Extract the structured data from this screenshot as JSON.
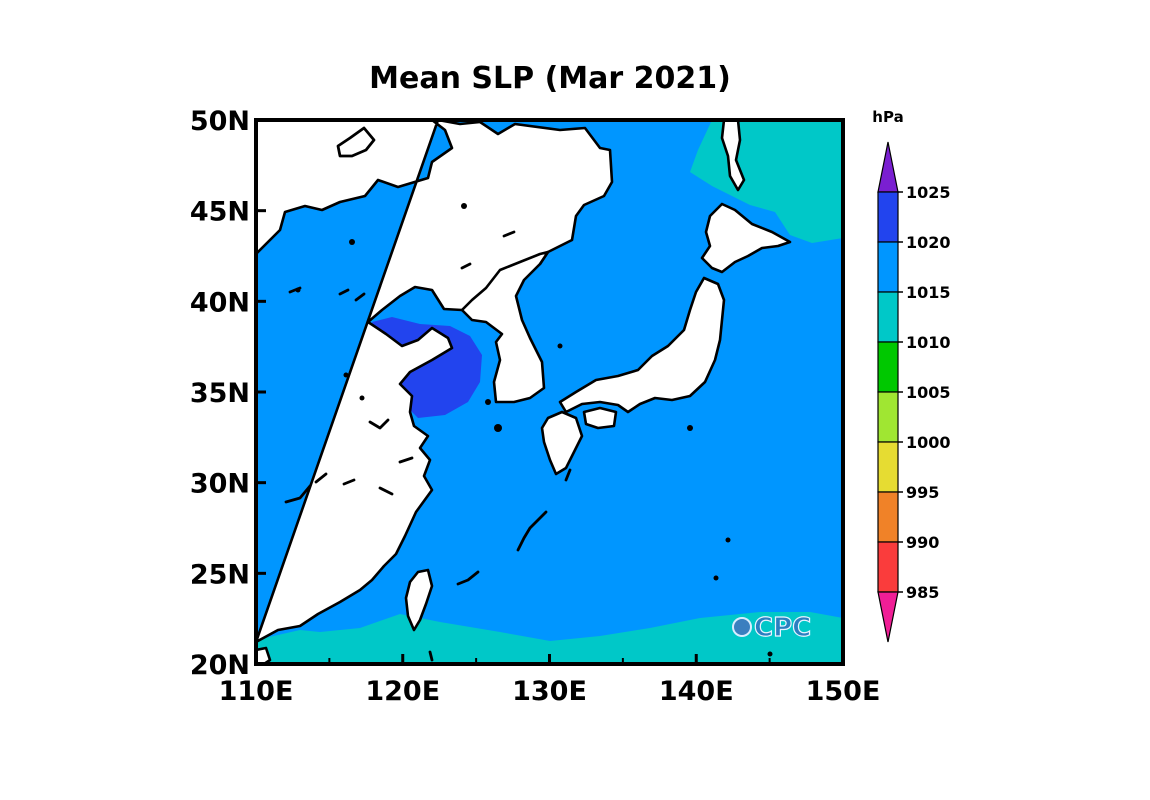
{
  "map": {
    "title": "Mean  SLP  (Mar 2021)",
    "lon_range": [
      110,
      150
    ],
    "lat_range": [
      20,
      50
    ],
    "lon_ticks": [
      {
        "value": 110,
        "label": "110E"
      },
      {
        "value": 120,
        "label": "120E"
      },
      {
        "value": 130,
        "label": "130E"
      },
      {
        "value": 140,
        "label": "140E"
      },
      {
        "value": 150,
        "label": "150E"
      }
    ],
    "lat_ticks": [
      {
        "value": 20,
        "label": "20N"
      },
      {
        "value": 25,
        "label": "25N"
      },
      {
        "value": 30,
        "label": "30N"
      },
      {
        "value": 35,
        "label": "35N"
      },
      {
        "value": 40,
        "label": "40N"
      },
      {
        "value": 45,
        "label": "45N"
      },
      {
        "value": 50,
        "label": "50N"
      }
    ]
  },
  "colorbar": {
    "unit": "hPa",
    "levels": [
      "1025",
      "1020",
      "1015",
      "1010",
      "1005",
      "1000",
      "995",
      "990",
      "985"
    ],
    "colors": [
      "#7a1fd1",
      "#2244ee",
      "#0096ff",
      "#00c8c8",
      "#00c800",
      "#a0e632",
      "#e6dc32",
      "#f08228",
      "#fa3c3c",
      "#f01e96"
    ]
  },
  "field_colors": {
    "band_1010_1015": "#00c8c8",
    "band_1015_1020": "#0096ff",
    "band_1020_1025": "#2244ee",
    "land": "#ffffff"
  },
  "logo": {
    "text": "CPC"
  }
}
